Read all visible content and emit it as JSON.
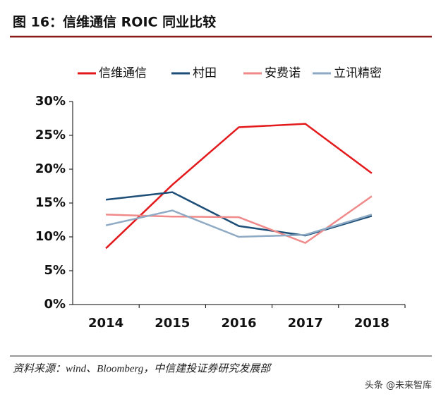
{
  "chart_data": {
    "type": "line",
    "title": "图 16：信维通信 ROIC 同业比较",
    "source": "资料来源：wind、Bloomberg，中信建投证券研究发展部",
    "watermark": "头条 @未来智库",
    "categories": [
      "2014",
      "2015",
      "2016",
      "2017",
      "2018"
    ],
    "series": [
      {
        "name": "信维通信",
        "color": "#e3191c",
        "values": [
          8.3,
          17.7,
          26.2,
          26.7,
          19.4
        ]
      },
      {
        "name": "村田",
        "color": "#1c4e78",
        "values": [
          15.5,
          16.6,
          11.6,
          10.2,
          13.1
        ]
      },
      {
        "name": "安费诺",
        "color": "#f08a8a",
        "values": [
          13.3,
          13.0,
          12.9,
          9.1,
          16.0
        ]
      },
      {
        "name": "立讯精密",
        "color": "#8eaac4",
        "values": [
          11.7,
          13.9,
          10.0,
          10.3,
          13.3
        ]
      }
    ],
    "ylim": [
      0,
      30
    ],
    "yticks": [
      {
        "value": 0,
        "label": "0%"
      },
      {
        "value": 5,
        "label": "5%"
      },
      {
        "value": 10,
        "label": "10%"
      },
      {
        "value": 15,
        "label": "15%"
      },
      {
        "value": 20,
        "label": "20%"
      },
      {
        "value": 25,
        "label": "25%"
      },
      {
        "value": 30,
        "label": "30%"
      }
    ],
    "legend": "top"
  }
}
